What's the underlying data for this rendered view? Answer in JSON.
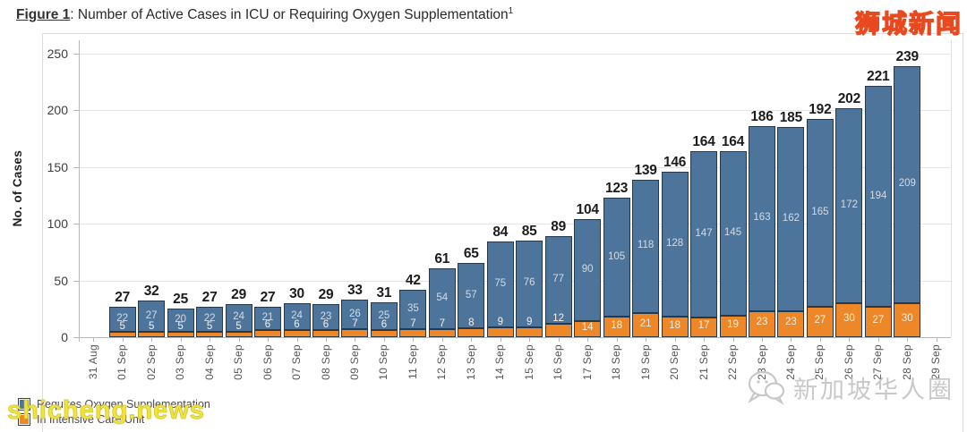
{
  "title": {
    "figure_label": "Figure 1",
    "rest": ": Number of Active Cases in ICU or Requiring Oxygen Supplementation",
    "footnote_marker": "1"
  },
  "chart_data": {
    "type": "bar",
    "stacked": true,
    "title": "Number of Active Cases in ICU or Requiring Oxygen Supplementation",
    "ylabel": "No. of Cases",
    "ylim": [
      0,
      260
    ],
    "yticks": [
      0,
      50,
      100,
      150,
      200,
      250
    ],
    "grid": true,
    "legend_position": "bottom-left",
    "axis_tick_labels": [
      "31 Aug",
      "01 Sep",
      "02 Sep",
      "03 Sep",
      "04 Sep",
      "05 Sep",
      "06 Sep",
      "07 Sep",
      "08 Sep",
      "09 Sep",
      "10 Sep",
      "11 Sep",
      "12 Sep",
      "13 Sep",
      "14 Sep",
      "15 Sep",
      "16 Sep",
      "17 Sep",
      "18 Sep",
      "19 Sep",
      "20 Sep",
      "21 Sep",
      "22 Sep",
      "23 Sep",
      "24 Sep",
      "25 Sep",
      "26 Sep",
      "27 Sep",
      "28 Sep",
      "29 Sep"
    ],
    "categories": [
      "01 Sep",
      "02 Sep",
      "03 Sep",
      "04 Sep",
      "05 Sep",
      "06 Sep",
      "07 Sep",
      "08 Sep",
      "09 Sep",
      "10 Sep",
      "11 Sep",
      "12 Sep",
      "13 Sep",
      "14 Sep",
      "15 Sep",
      "16 Sep",
      "17 Sep",
      "18 Sep",
      "19 Sep",
      "20 Sep",
      "21 Sep",
      "22 Sep",
      "23 Sep",
      "24 Sep",
      "25 Sep",
      "26 Sep",
      "27 Sep",
      "28 Sep"
    ],
    "series": [
      {
        "name": "Requires Oxygen Supplementation",
        "color": "#4d759c",
        "values": [
          22,
          27,
          20,
          22,
          24,
          21,
          24,
          23,
          26,
          25,
          35,
          54,
          57,
          75,
          76,
          77,
          90,
          105,
          118,
          128,
          147,
          145,
          163,
          162,
          165,
          172,
          194,
          209
        ]
      },
      {
        "name": "In Intensive Care Unit",
        "color": "#ee8727",
        "values": [
          5,
          5,
          5,
          5,
          5,
          6,
          6,
          6,
          7,
          6,
          7,
          7,
          8,
          9,
          9,
          12,
          14,
          18,
          21,
          18,
          17,
          19,
          23,
          23,
          27,
          30,
          27,
          30
        ]
      }
    ],
    "totals": [
      27,
      32,
      25,
      27,
      29,
      27,
      30,
      29,
      33,
      31,
      42,
      61,
      65,
      84,
      85,
      89,
      104,
      123,
      139,
      146,
      164,
      164,
      186,
      185,
      192,
      202,
      221,
      239
    ]
  },
  "legend": {
    "items": [
      {
        "label": "Requires Oxygen Supplementation",
        "color": "#4d759c"
      },
      {
        "label": "In Intensive Care Unit",
        "color": "#ee8727"
      }
    ]
  },
  "watermarks": {
    "top_right": "狮城新闻",
    "bottom_left": "shicheng.news",
    "bottom_right": "新加坡华人圈"
  },
  "style": {
    "bar_outline": "#27384a",
    "grid_color": "#e4e4e4",
    "axis_color": "#b9b9b9",
    "y_tick_label_color": "#3d3d3d",
    "x_label_color": "#565656",
    "total_label_color": "#1c1c1c",
    "oxygen_value_label_color": "#d3dae3",
    "icu_value_label_color": "#f8f0e4"
  }
}
